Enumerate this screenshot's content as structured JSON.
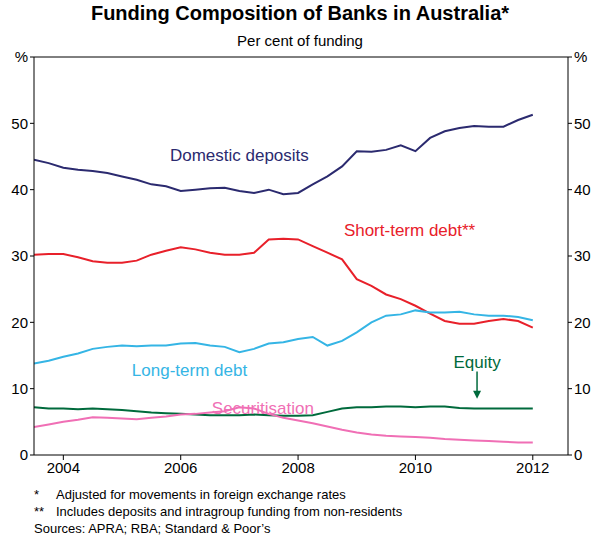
{
  "chart_data": {
    "type": "line",
    "title": "Funding Composition of Banks in Australia*",
    "subtitle": "Per cent of funding",
    "x": [
      2003.5,
      2003.75,
      2004.0,
      2004.25,
      2004.5,
      2004.75,
      2005.0,
      2005.25,
      2005.5,
      2005.75,
      2006.0,
      2006.25,
      2006.5,
      2006.75,
      2007.0,
      2007.25,
      2007.5,
      2007.75,
      2008.0,
      2008.25,
      2008.5,
      2008.75,
      2009.0,
      2009.25,
      2009.5,
      2009.75,
      2010.0,
      2010.25,
      2010.5,
      2010.75,
      2011.0,
      2011.25,
      2011.5,
      2011.75,
      2012.0
    ],
    "series": [
      {
        "name": "Domestic deposits",
        "color": "#2b2a6f",
        "values": [
          44.5,
          44,
          43.3,
          43,
          42.8,
          42.5,
          42,
          41.5,
          40.8,
          40.5,
          39.8,
          40,
          40.2,
          40.3,
          39.8,
          39.5,
          40,
          39.3,
          39.5,
          40.8,
          42,
          43.5,
          45.8,
          45.7,
          46,
          46.7,
          45.8,
          47.8,
          48.8,
          49.3,
          49.6,
          49.5,
          49.5,
          50.5,
          51.3
        ]
      },
      {
        "name": "Short-term debt**",
        "color": "#e8202a",
        "values": [
          30.2,
          30.3,
          30.3,
          29.8,
          29.2,
          29,
          29,
          29.3,
          30.2,
          30.8,
          31.3,
          31,
          30.5,
          30.2,
          30.2,
          30.5,
          32.5,
          32.6,
          32.5,
          31.5,
          30.5,
          29.5,
          26.5,
          25.5,
          24.2,
          23.5,
          22.5,
          21.3,
          20.2,
          19.8,
          19.8,
          20.2,
          20.5,
          20.2,
          19.2
        ]
      },
      {
        "name": "Long-term debt",
        "color": "#35b5e5",
        "values": [
          13.8,
          14.2,
          14.8,
          15.3,
          16,
          16.3,
          16.5,
          16.4,
          16.5,
          16.5,
          16.8,
          16.9,
          16.5,
          16.3,
          15.5,
          16,
          16.8,
          17,
          17.5,
          17.8,
          16.5,
          17.2,
          18.5,
          20,
          21,
          21.2,
          21.8,
          21.5,
          21.5,
          21.6,
          21.2,
          21,
          21,
          20.8,
          20.3
        ]
      },
      {
        "name": "Equity",
        "color": "#006a3c",
        "values": [
          7.2,
          7.0,
          7.0,
          6.9,
          7.0,
          6.9,
          6.8,
          6.6,
          6.4,
          6.3,
          6.2,
          6.1,
          6.0,
          6.0,
          6.0,
          6.1,
          6.0,
          5.9,
          5.9,
          6.0,
          6.5,
          7.0,
          7.2,
          7.2,
          7.3,
          7.3,
          7.2,
          7.3,
          7.3,
          7.1,
          7.0,
          7.0,
          7.0,
          7.0,
          7.0
        ]
      },
      {
        "name": "Securitisation",
        "color": "#f06fb5",
        "values": [
          4.2,
          4.6,
          5.0,
          5.3,
          5.7,
          5.6,
          5.5,
          5.4,
          5.6,
          5.8,
          6.1,
          6.2,
          6.4,
          6.6,
          7.2,
          7.0,
          6.2,
          5.6,
          5.2,
          4.8,
          4.3,
          3.8,
          3.4,
          3.1,
          2.9,
          2.8,
          2.7,
          2.6,
          2.4,
          2.3,
          2.2,
          2.1,
          2.0,
          1.9,
          1.9
        ]
      }
    ],
    "xlim": [
      2003.5,
      2012.6
    ],
    "xticks": [
      2004,
      2006,
      2008,
      2010,
      2012
    ],
    "ylim": [
      0,
      60
    ],
    "yticks": [
      0,
      10,
      20,
      30,
      40,
      50,
      {
        "value": 60,
        "label": "%"
      }
    ],
    "grid": false,
    "notes": [
      {
        "mark": "*",
        "text": "Adjusted for movements in foreign exchange rates"
      },
      {
        "mark": "**",
        "text": "Includes deposits and intragroup funding from non-residents"
      }
    ],
    "sources": "Sources: APRA; RBA; Standard & Poor’s"
  }
}
